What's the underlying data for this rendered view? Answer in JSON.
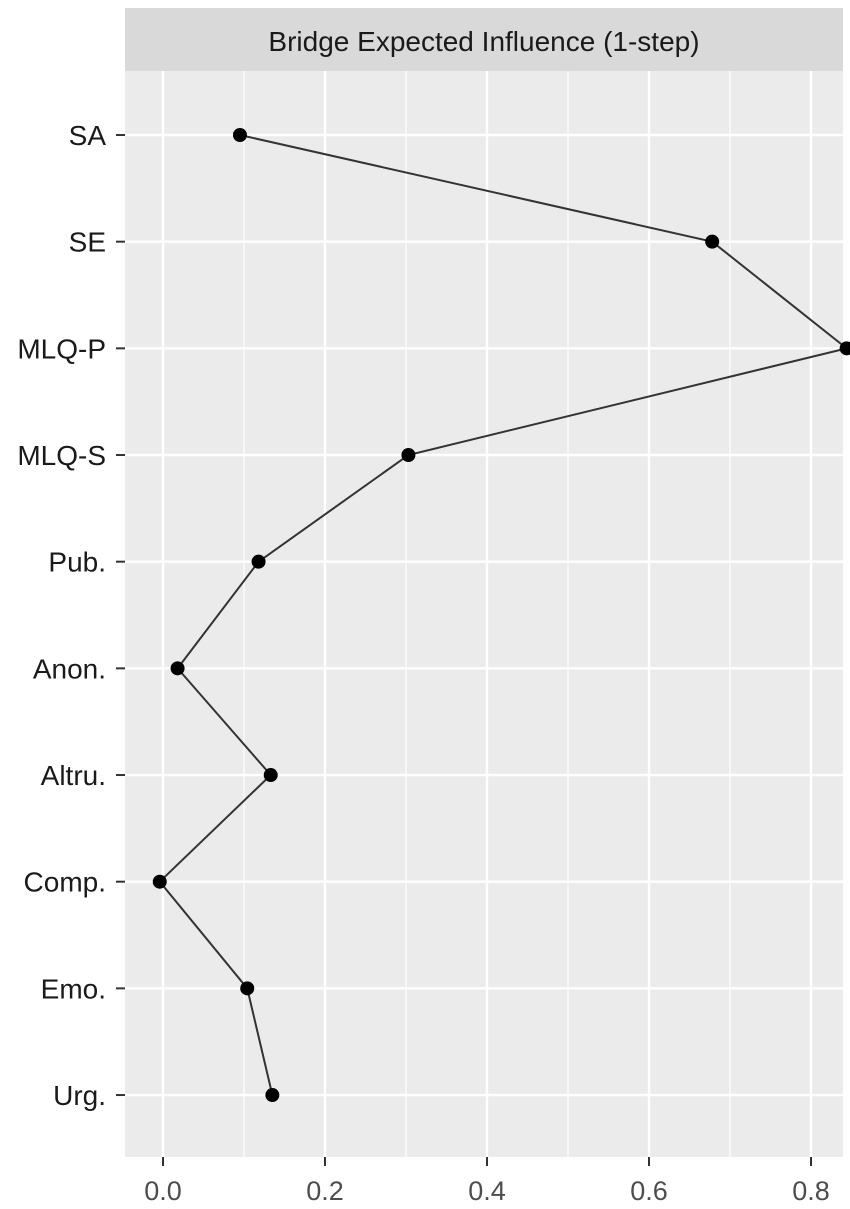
{
  "chart_data": {
    "type": "line",
    "title": "",
    "panel_strip": "Bridge Expected Influence (1-step)",
    "xlabel": "",
    "ylabel": "",
    "xlim": [
      -0.05,
      0.85
    ],
    "x_ticks": [
      0.0,
      0.2,
      0.4,
      0.6,
      0.8
    ],
    "x_tick_labels": [
      "0.0",
      "0.2",
      "0.4",
      "0.6",
      "0.8"
    ],
    "grid": true,
    "legend": "none",
    "categories": [
      "SA",
      "SE",
      "MLQ-P",
      "MLQ-S",
      "Pub.",
      "Anon.",
      "Altru.",
      "Comp.",
      "Emo.",
      "Urg."
    ],
    "series": [
      {
        "values": [
          0.095,
          0.678,
          0.844,
          0.303,
          0.118,
          0.018,
          0.133,
          -0.004,
          0.104,
          0.135
        ]
      }
    ],
    "colors": {
      "panel_background": "#ebebeb",
      "strip_background": "#d9d9d9",
      "grid": "#ffffff",
      "line": "#333333",
      "point": "#000000",
      "tick": "#333333"
    }
  }
}
